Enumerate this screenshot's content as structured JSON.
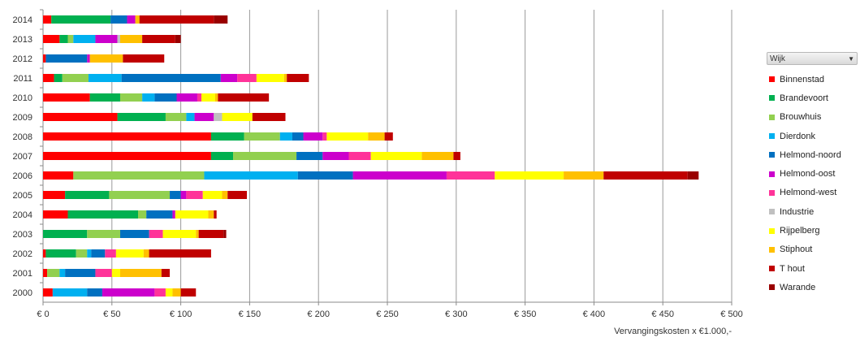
{
  "chart_data": {
    "type": "bar",
    "orientation": "horizontal",
    "stacked": true,
    "categories": [
      "2014",
      "2013",
      "2012",
      "2011",
      "2010",
      "2009",
      "2008",
      "2007",
      "2006",
      "2005",
      "2004",
      "2003",
      "2002",
      "2001",
      "2000"
    ],
    "series": [
      {
        "name": "Binnenstad",
        "color": "#ff0000",
        "values": [
          6,
          12,
          2,
          8,
          34,
          54,
          122,
          122,
          22,
          16,
          18,
          0,
          2,
          3,
          7
        ]
      },
      {
        "name": "Brandevoort",
        "color": "#00b050",
        "values": [
          43,
          6,
          0,
          6,
          22,
          35,
          24,
          16,
          0,
          32,
          51,
          32,
          22,
          0,
          0
        ]
      },
      {
        "name": "Brouwhuis",
        "color": "#92d050",
        "values": [
          0,
          4,
          0,
          19,
          16,
          15,
          26,
          46,
          95,
          44,
          6,
          24,
          8,
          9,
          0
        ]
      },
      {
        "name": "Dierdonk",
        "color": "#00b0f0",
        "values": [
          0,
          16,
          0,
          24,
          9,
          6,
          9,
          0,
          68,
          0,
          0,
          0,
          3,
          4,
          25
        ]
      },
      {
        "name": "Helmond-noord",
        "color": "#0070c0",
        "values": [
          12,
          0,
          30,
          72,
          16,
          0,
          8,
          19,
          40,
          8,
          19,
          21,
          10,
          22,
          11
        ]
      },
      {
        "name": "Helmond-oost",
        "color": "#cc00cc",
        "values": [
          6,
          16,
          2,
          12,
          15,
          14,
          14,
          19,
          68,
          4,
          2,
          0,
          0,
          0,
          38
        ]
      },
      {
        "name": "Helmond-west",
        "color": "#ff3399",
        "values": [
          0,
          0,
          0,
          14,
          3,
          0,
          3,
          16,
          35,
          12,
          0,
          10,
          8,
          12,
          8
        ]
      },
      {
        "name": "Industrie",
        "color": "#c0c0c0",
        "values": [
          0,
          2,
          0,
          0,
          0,
          6,
          0,
          0,
          0,
          0,
          0,
          0,
          0,
          0,
          0
        ]
      },
      {
        "name": "Rijpelberg",
        "color": "#ffff00",
        "values": [
          0,
          0,
          0,
          20,
          10,
          22,
          30,
          37,
          50,
          14,
          24,
          24,
          20,
          6,
          5
        ]
      },
      {
        "name": "Stiphout",
        "color": "#ffc000",
        "values": [
          3,
          16,
          24,
          2,
          2,
          0,
          12,
          23,
          29,
          4,
          4,
          2,
          4,
          30,
          6
        ]
      },
      {
        "name": "T hout",
        "color": "#c00000",
        "values": [
          54,
          24,
          30,
          16,
          37,
          24,
          6,
          5,
          61,
          14,
          2,
          18,
          45,
          6,
          11
        ]
      },
      {
        "name": "Warande",
        "color": "#990000",
        "values": [
          10,
          4,
          0,
          0,
          0,
          0,
          0,
          0,
          8,
          0,
          0,
          2,
          0,
          0,
          0
        ]
      }
    ],
    "xlim": [
      0,
      500
    ],
    "xticks": [
      0,
      50,
      100,
      150,
      200,
      250,
      300,
      350,
      400,
      450,
      500
    ],
    "xtick_labels": [
      "€ 0",
      "€ 50",
      "€ 100",
      "€ 150",
      "€ 200",
      "€ 250",
      "€ 300",
      "€ 350",
      "€ 400",
      "€ 450",
      "€ 500"
    ],
    "xlabel": "Vervangingskosten x €1.000,-",
    "ylabel": "",
    "title": "",
    "grid": "vertical",
    "legend_position": "right"
  },
  "legend": {
    "header": "Wijk",
    "dropdown_symbol": "▼"
  }
}
